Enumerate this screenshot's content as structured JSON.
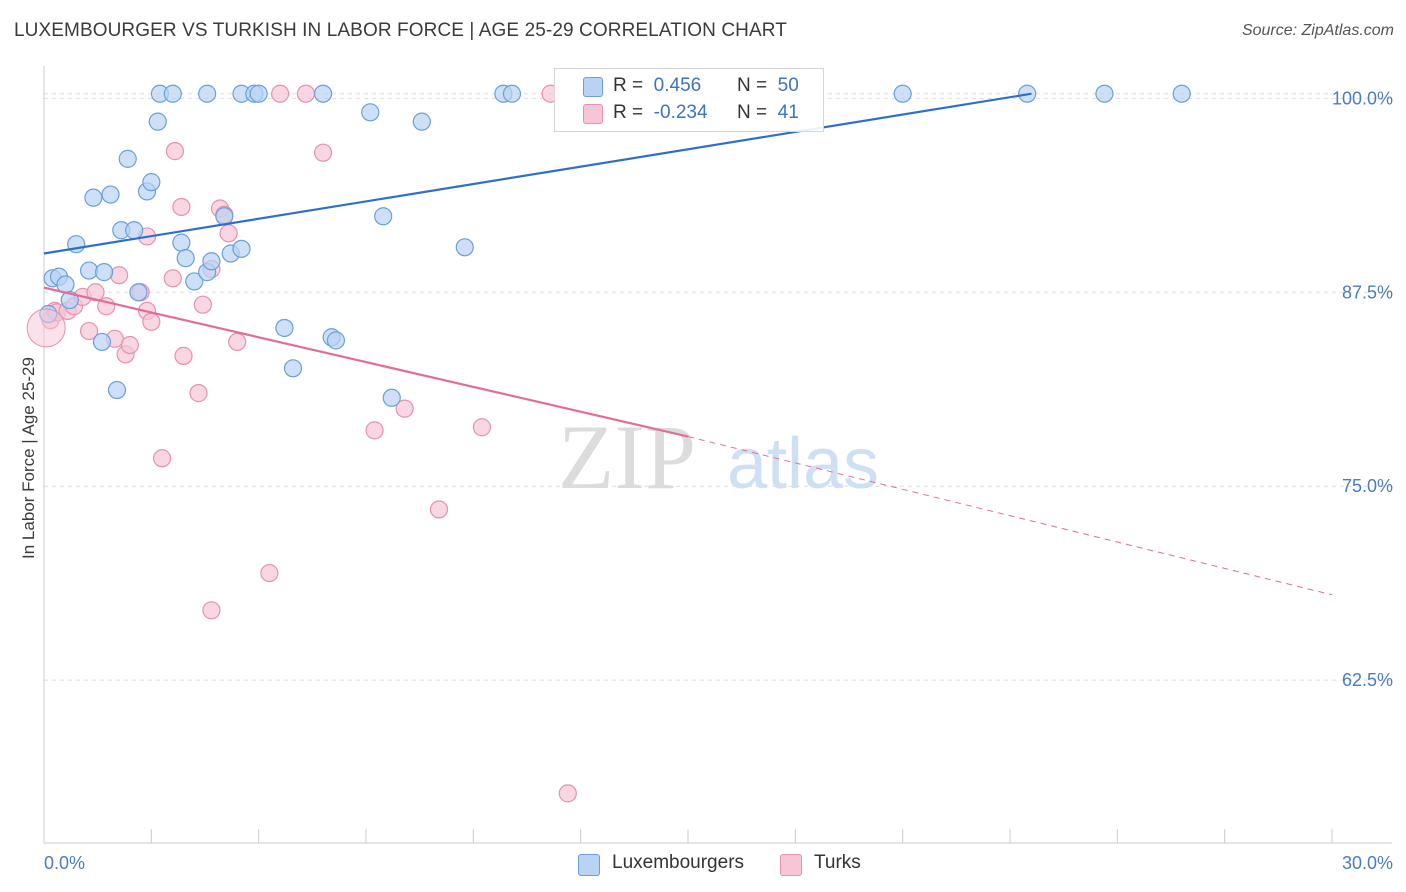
{
  "title": "LUXEMBOURGER VS TURKISH IN LABOR FORCE | AGE 25-29 CORRELATION CHART",
  "source": "Source: ZipAtlas.com",
  "watermark": {
    "zip": "ZIP",
    "atlas": "atlas"
  },
  "colors": {
    "blue_fill": "#b9d3f3",
    "blue_stroke": "#6a9fdc",
    "blue_line": "#2f6fcb",
    "pink_fill": "#f7c6d6",
    "pink_stroke": "#e890ae",
    "pink_line": "#e26d96",
    "tick_text": "#4a7cc4",
    "grid": "#dddddd"
  },
  "legend": {
    "rows": [
      {
        "r_label": "R =",
        "r_value": "0.456",
        "n_label": "N =",
        "n_value": "50"
      },
      {
        "r_label": "R =",
        "r_value": "-0.234",
        "n_label": "N =",
        "n_value": "41"
      }
    ]
  },
  "bottom_legend": [
    "Luxembourgers",
    "Turks"
  ],
  "chart_data": {
    "type": "scatter",
    "title": "LUXEMBOURGER VS TURKISH IN LABOR FORCE | AGE 25-29 CORRELATION CHART",
    "xlabel": "",
    "ylabel": "In Labor Force | Age 25-29",
    "xlim": [
      0,
      30
    ],
    "ylim": [
      52,
      101.7
    ],
    "x_tick_labels": [
      "0.0%",
      "30.0%"
    ],
    "y_ticks": [
      62.5,
      75.0,
      87.5,
      100.0
    ],
    "y_tick_labels": [
      "62.5%",
      "75.0%",
      "87.5%",
      "100.0%"
    ],
    "grid": true,
    "series": [
      {
        "name": "Luxembourgers",
        "color": "#6a9fdc",
        "points": [
          [
            0.1,
            86.1
          ],
          [
            0.2,
            88.4
          ],
          [
            0.35,
            88.5
          ],
          [
            0.5,
            88.0
          ],
          [
            0.6,
            87.0
          ],
          [
            0.75,
            90.6
          ],
          [
            1.05,
            88.9
          ],
          [
            1.15,
            93.6
          ],
          [
            1.35,
            84.3
          ],
          [
            1.4,
            88.8
          ],
          [
            1.55,
            93.8
          ],
          [
            1.7,
            81.2
          ],
          [
            1.8,
            91.5
          ],
          [
            1.95,
            96.1
          ],
          [
            2.1,
            91.5
          ],
          [
            2.2,
            87.5
          ],
          [
            2.4,
            94.0
          ],
          [
            2.5,
            94.6
          ],
          [
            2.65,
            98.5
          ],
          [
            2.7,
            100.3
          ],
          [
            3.0,
            100.3
          ],
          [
            3.2,
            90.7
          ],
          [
            3.3,
            89.7
          ],
          [
            3.5,
            88.2
          ],
          [
            3.8,
            88.8
          ],
          [
            3.8,
            100.3
          ],
          [
            3.9,
            89.5
          ],
          [
            4.2,
            92.4
          ],
          [
            4.35,
            90.0
          ],
          [
            4.6,
            90.3
          ],
          [
            4.6,
            100.3
          ],
          [
            4.9,
            100.3
          ],
          [
            5.0,
            100.3
          ],
          [
            5.6,
            85.2
          ],
          [
            5.8,
            82.6
          ],
          [
            6.5,
            100.3
          ],
          [
            6.7,
            84.6
          ],
          [
            6.8,
            84.4
          ],
          [
            7.6,
            99.1
          ],
          [
            7.9,
            92.4
          ],
          [
            8.1,
            80.7
          ],
          [
            8.8,
            98.5
          ],
          [
            9.8,
            90.4
          ],
          [
            10.7,
            100.3
          ],
          [
            10.9,
            100.3
          ],
          [
            20.0,
            100.3
          ],
          [
            22.9,
            100.3
          ],
          [
            24.7,
            100.3
          ],
          [
            26.5,
            100.3
          ]
        ],
        "trendline": {
          "x": [
            0,
            23
          ],
          "y": [
            90.0,
            100.3
          ]
        }
      },
      {
        "name": "Turks",
        "color": "#e890ae",
        "points": [
          [
            0.15,
            85.7
          ],
          [
            0.25,
            86.3
          ],
          [
            0.3,
            86.2
          ],
          [
            0.55,
            86.3
          ],
          [
            0.7,
            86.6
          ],
          [
            0.9,
            87.2
          ],
          [
            1.05,
            85.0
          ],
          [
            1.2,
            87.5
          ],
          [
            1.45,
            86.6
          ],
          [
            1.65,
            84.5
          ],
          [
            1.75,
            88.6
          ],
          [
            1.9,
            83.5
          ],
          [
            2.0,
            84.1
          ],
          [
            2.25,
            87.5
          ],
          [
            2.4,
            91.1
          ],
          [
            2.4,
            86.3
          ],
          [
            2.5,
            85.6
          ],
          [
            2.75,
            76.8
          ],
          [
            3.0,
            88.4
          ],
          [
            3.05,
            96.6
          ],
          [
            3.2,
            93.0
          ],
          [
            3.25,
            83.4
          ],
          [
            3.6,
            81.0
          ],
          [
            3.7,
            86.7
          ],
          [
            3.9,
            89.0
          ],
          [
            3.9,
            67.0
          ],
          [
            4.1,
            92.9
          ],
          [
            4.2,
            92.5
          ],
          [
            4.3,
            91.3
          ],
          [
            4.5,
            84.3
          ],
          [
            5.25,
            69.4
          ],
          [
            5.5,
            100.3
          ],
          [
            6.1,
            100.3
          ],
          [
            6.5,
            96.5
          ],
          [
            7.7,
            78.6
          ],
          [
            8.4,
            80.0
          ],
          [
            9.2,
            73.5
          ],
          [
            10.2,
            78.8
          ],
          [
            11.8,
            100.3
          ],
          [
            12.2,
            55.2
          ]
        ],
        "trendline": {
          "x": [
            0,
            15
          ],
          "y": [
            87.8,
            78.2
          ]
        },
        "trendline_dashed": {
          "x": [
            15,
            30
          ],
          "y": [
            78.2,
            68.0
          ]
        }
      }
    ]
  }
}
